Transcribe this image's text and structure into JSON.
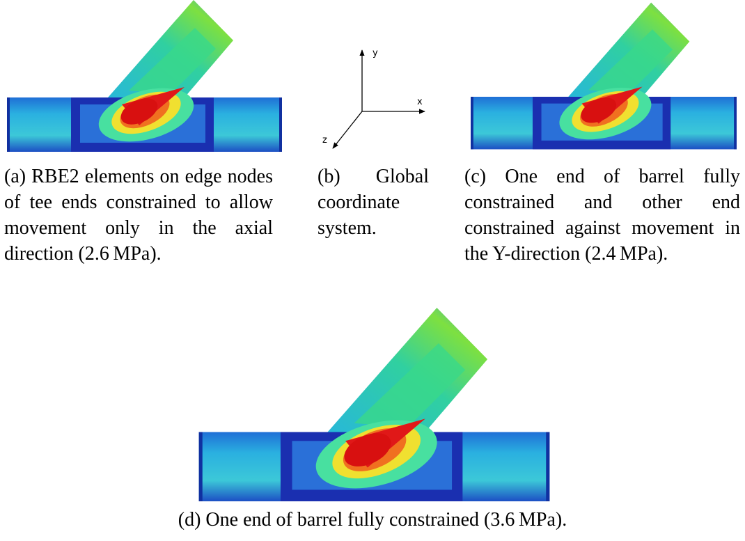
{
  "figure": {
    "subfigures": [
      {
        "caption": "(a) RBE2 elements on edge nodes of tee ends constrained to allow movement only in the axial direction (2.6 MPa)."
      },
      {
        "caption": "(b) Global coordinate system."
      },
      {
        "caption": "(c) One end of barrel fully constrained and other end constrained against movement in the Y-direction (2.4 MPa)."
      },
      {
        "caption": "(d) One end of barrel fully constrained (3.6 MPa)."
      }
    ],
    "axes": {
      "x": "x",
      "y": "y",
      "z": "z"
    }
  }
}
